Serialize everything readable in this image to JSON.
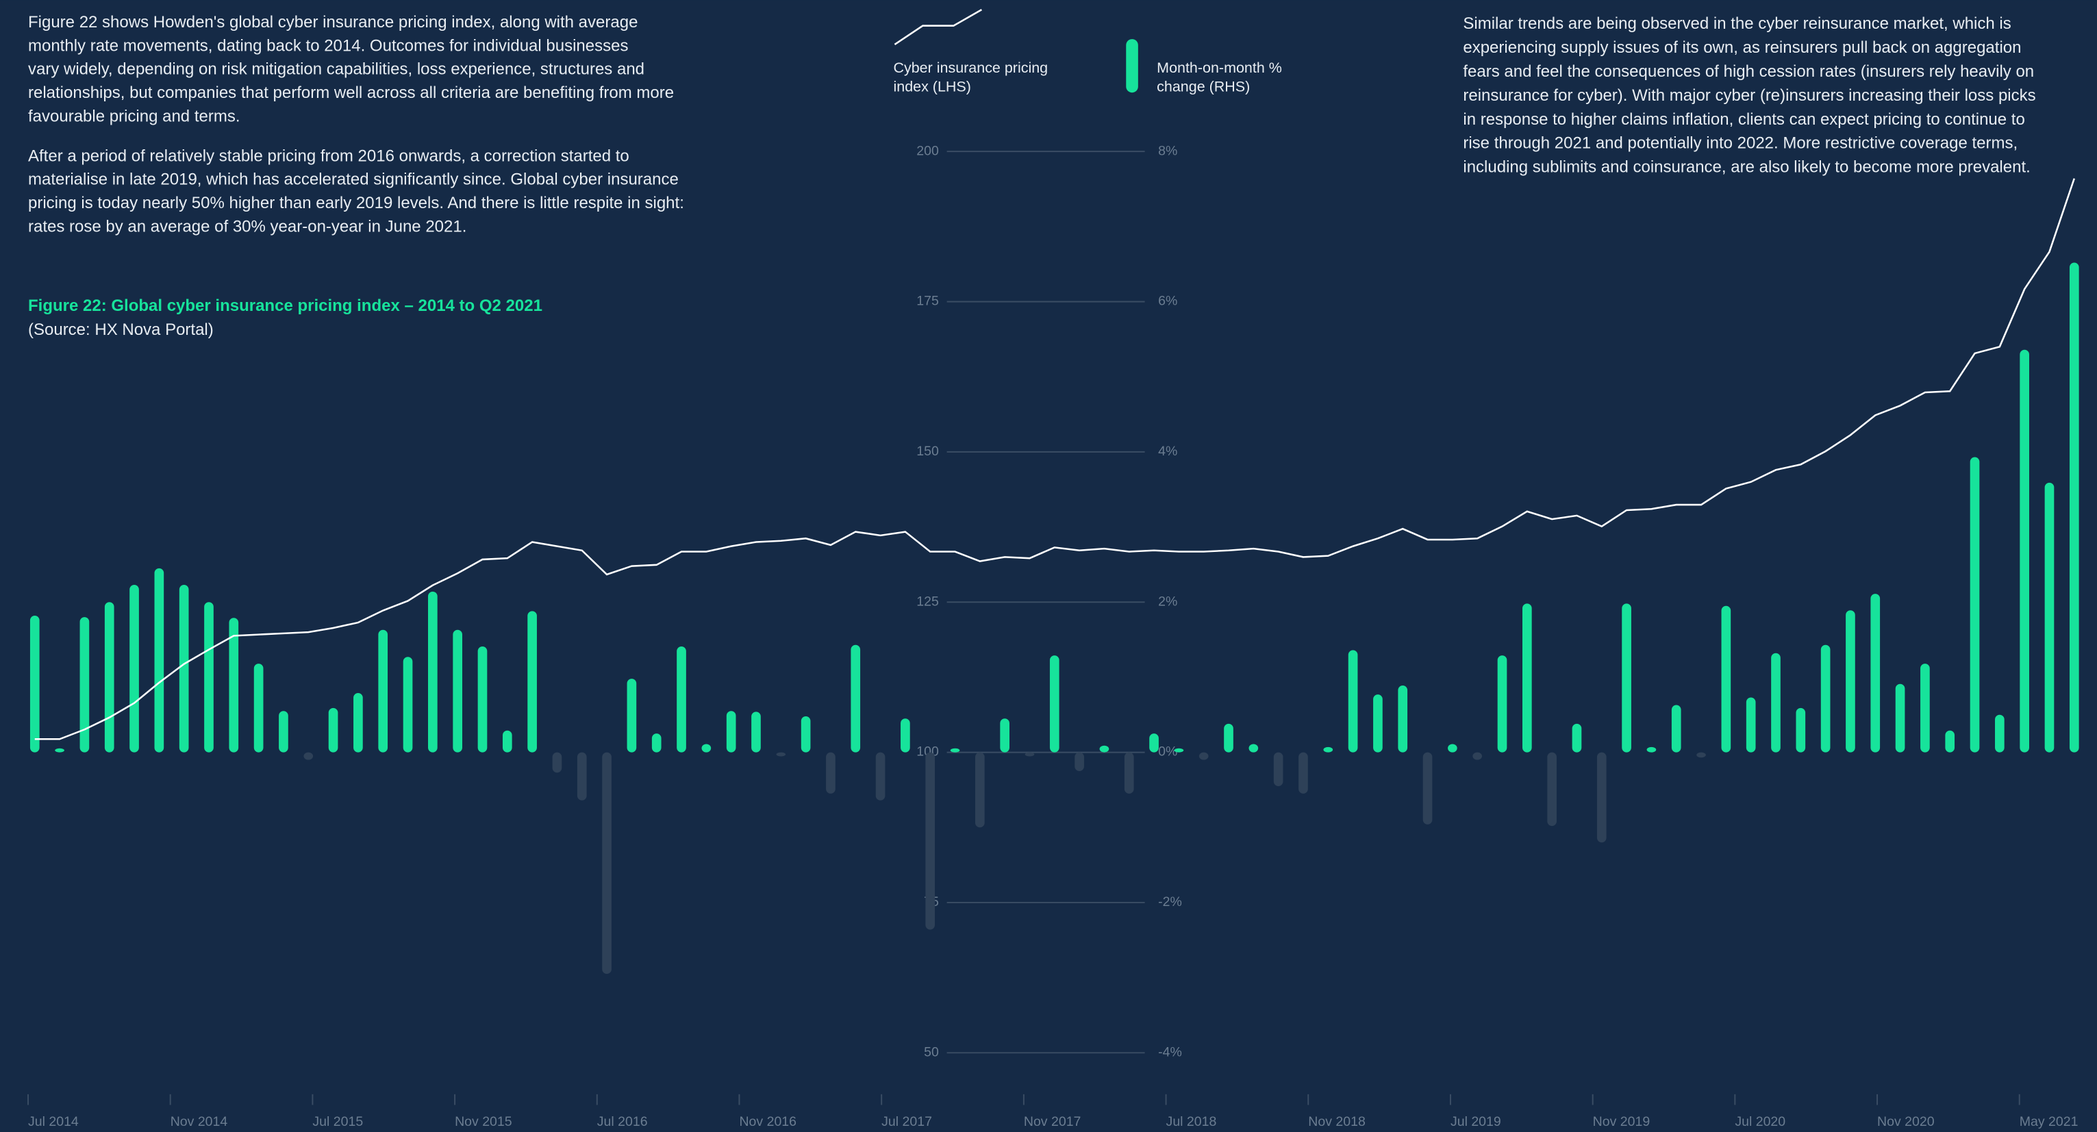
{
  "left_text": {
    "paragraphs": [
      [
        "Figure 22 shows Howden's global cyber insurance pricing index, along with average",
        "monthly rate movements, dating back to 2014. Outcomes for individual businesses",
        "vary widely, depending on risk mitigation capabilities, loss experience, structures and",
        "relationships, but companies that perform well across all criteria are benefiting from more",
        "favourable pricing and terms."
      ],
      [
        "After a period of relatively stable pricing from 2016 onwards, a correction started to",
        "materialise in late 2019, which has accelerated significantly since. Global cyber insurance",
        "pricing is today nearly 50% higher than early 2019 levels. And there is little respite in sight:",
        "rates rose by an average of 30% year-on-year in June 2021."
      ]
    ]
  },
  "figure": {
    "caption": "Figure 22: Global cyber insurance pricing index – 2014 to Q2 2021",
    "source": "(Source: HX Nova Portal)"
  },
  "right_text": {
    "lines": [
      "Similar trends are being observed in the cyber reinsurance market, which is",
      "experiencing supply issues of its own, as reinsurers pull back on aggregation",
      "fears and feel the consequences of high cession rates (insurers rely heavily on",
      "reinsurance for cyber). With major cyber (re)insurers increasing their loss picks",
      "in response to higher claims inflation, clients can expect pricing to continue to",
      "rise through 2021 and potentially into 2022. More restrictive coverage terms,",
      "including sublimits and coinsurance, are also likely to become more prevalent."
    ]
  },
  "chart_data": {
    "type": "combo",
    "x_labels": [
      "Jul 2014",
      "Nov 2014",
      "Jul 2015",
      "Nov 2015",
      "Jul 2016",
      "Nov 2016",
      "Jul 2017",
      "Nov 2017",
      "Jul 2018",
      "Nov 2018",
      "Jul 2019",
      "Nov 2019",
      "Jul 2020",
      "Nov 2020",
      "May 2021"
    ],
    "ylim": [
      50,
      200
    ],
    "yticks": [
      50,
      75,
      100,
      125,
      150,
      175,
      200
    ],
    "y2lim": [
      -4,
      8
    ],
    "y2ticks": [
      {
        "value": -4,
        "label": "-4%"
      },
      {
        "value": -2,
        "label": "-2%"
      },
      {
        "value": 0,
        "label": "0%"
      },
      {
        "value": 2,
        "label": "2%"
      },
      {
        "value": 4,
        "label": "4%"
      },
      {
        "value": 6,
        "label": "6%"
      },
      {
        "value": 8,
        "label": "8%"
      }
    ],
    "series": [
      {
        "name": "Cyber insurance pricing index (LHS)",
        "kind": "line",
        "color": "#ffffff",
        "axis": "y",
        "values": [
          102.2,
          102.2,
          103.8,
          105.8,
          108.2,
          111.6,
          114.7,
          117.1,
          119.4,
          119.6,
          119.8,
          120.0,
          120.7,
          121.6,
          123.6,
          125.2,
          127.8,
          129.8,
          132.1,
          132.3,
          135.0,
          134.3,
          133.6,
          129.6,
          131.0,
          131.2,
          133.4,
          133.4,
          134.3,
          135.0,
          135.2,
          135.6,
          134.5,
          136.7,
          136.1,
          136.7,
          133.4,
          133.4,
          131.8,
          132.5,
          132.3,
          134.1,
          133.6,
          133.9,
          133.4,
          133.6,
          133.4,
          133.4,
          133.6,
          133.9,
          133.4,
          132.5,
          132.7,
          134.3,
          135.6,
          137.2,
          135.4,
          135.4,
          135.6,
          137.6,
          140.1,
          138.8,
          139.4,
          137.6,
          140.3,
          140.5,
          141.2,
          141.2,
          143.9,
          145.0,
          147.0,
          147.9,
          150.1,
          152.8,
          156.1,
          157.7,
          159.9,
          160.1,
          166.4,
          167.5,
          177.1,
          183.3,
          195.5
        ]
      },
      {
        "name": "Month-on-month % change (RHS)",
        "kind": "bar",
        "color": "#17e39b",
        "negative_color": "#2e4158",
        "axis": "y2",
        "values": [
          1.82,
          0,
          1.8,
          2.0,
          2.23,
          2.45,
          2.23,
          2.0,
          1.79,
          1.18,
          0.55,
          -0.1,
          0.59,
          0.79,
          1.63,
          1.27,
          2.14,
          1.63,
          1.41,
          0.29,
          1.88,
          -0.27,
          -0.64,
          -2.95,
          0.98,
          0.25,
          1.41,
          0.11,
          0.55,
          0.54,
          -0.05,
          0.48,
          -0.55,
          1.43,
          -0.64,
          0.45,
          -2.36,
          0.05,
          -1.0,
          0.45,
          -0.05,
          1.29,
          -0.25,
          0.09,
          -0.55,
          0.25,
          0,
          -0.1,
          0.38,
          0.11,
          -0.45,
          -0.55,
          0.07,
          1.36,
          0.77,
          0.89,
          -0.96,
          0.11,
          -0.1,
          1.29,
          1.98,
          -0.98,
          0.38,
          -1.2,
          1.98,
          0.07,
          0.63,
          -0.07,
          1.95,
          0.73,
          1.32,
          0.59,
          1.43,
          1.89,
          2.11,
          0.91,
          1.18,
          0.29,
          3.93,
          0.5,
          5.36,
          3.59,
          6.52
        ]
      }
    ]
  }
}
